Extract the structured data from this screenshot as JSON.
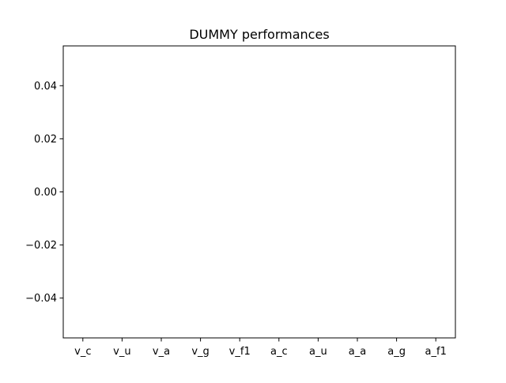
{
  "chart_data": {
    "type": "bar",
    "title": "DUMMY performances",
    "xlabel": "",
    "ylabel": "",
    "categories": [
      "v_c",
      "v_u",
      "v_a",
      "v_g",
      "v_f1",
      "a_c",
      "a_u",
      "a_a",
      "a_g",
      "a_f1"
    ],
    "values": [
      0,
      0,
      0,
      0,
      0,
      0,
      0,
      0,
      0,
      0
    ],
    "ylim": [
      -0.055,
      0.055
    ],
    "yticks": [
      -0.04,
      -0.02,
      0.0,
      0.02,
      0.04
    ],
    "ytick_labels": [
      "−0.04",
      "−0.02",
      "0.00",
      "0.02",
      "0.04"
    ],
    "grid": false,
    "bar_color": "#1f77b4"
  }
}
